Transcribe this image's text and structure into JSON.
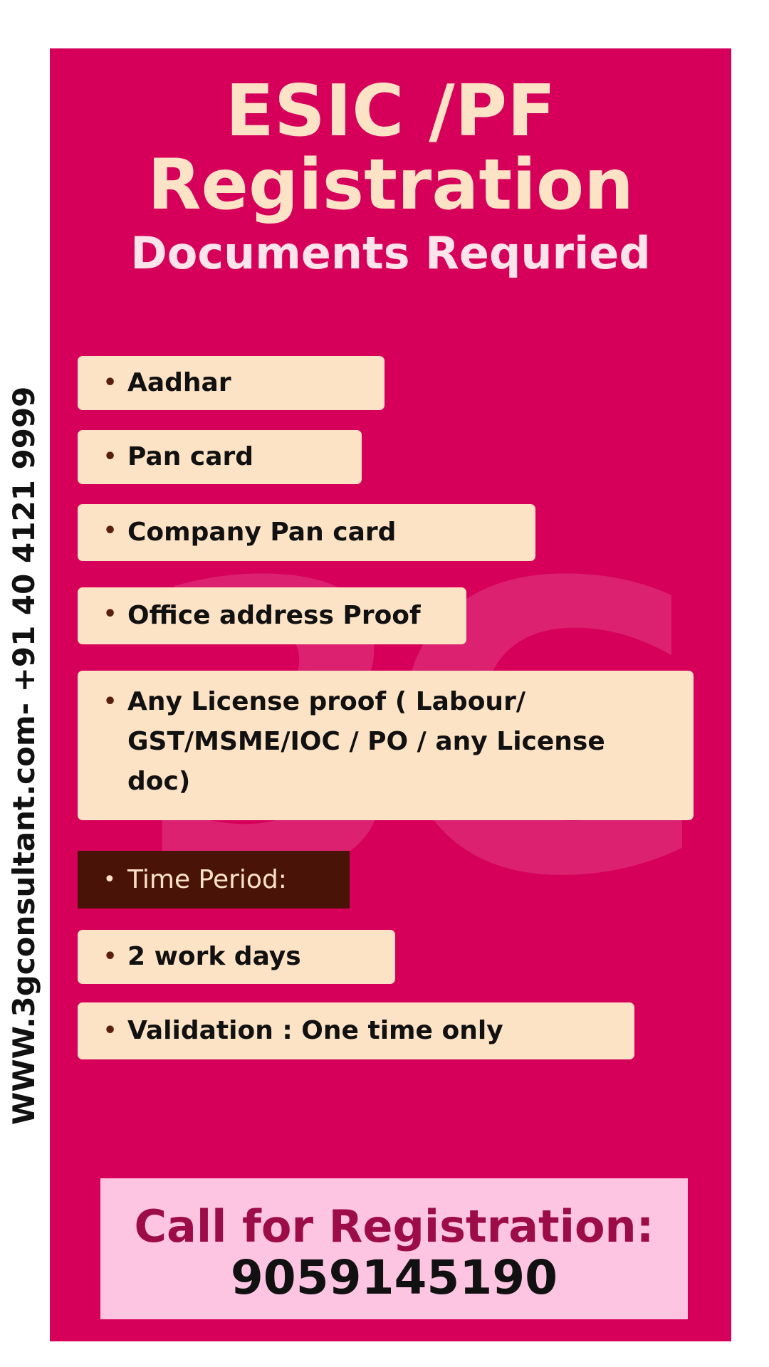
{
  "sidebar": {
    "contact_line": "WWW.3gconsultant.com- +91 40 4121 9999"
  },
  "watermark": {
    "text": "3G"
  },
  "header": {
    "title_line1": "ESIC /PF",
    "title_line2": "Registration",
    "subtitle": "Documents Requried"
  },
  "documents": {
    "bullet": "•",
    "items": [
      "Aadhar",
      "Pan card",
      "Company Pan card",
      "Office address Proof",
      "Any License proof ( Labour/ GST/MSME/IOC / PO / any License doc)"
    ]
  },
  "time_period": {
    "label": "Time Period:",
    "duration": "2 work days",
    "validation": "Validation : One time only"
  },
  "cta": {
    "label": "Call for Registration:",
    "phone": "9059145190"
  },
  "colors": {
    "poster_background": "#d6005a",
    "item_background": "#fde3c6",
    "time_period_background": "#4a1308",
    "cta_background": "#fec5e2",
    "cta_label_color": "#9c0c48"
  }
}
